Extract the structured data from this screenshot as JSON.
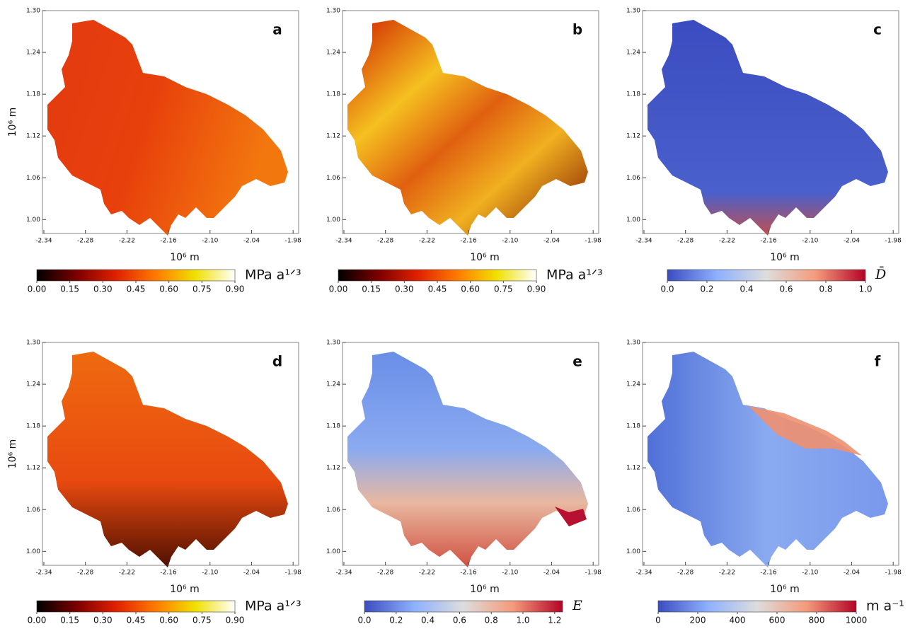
{
  "panels": [
    {
      "label": "a",
      "xlabel": "10⁶ m",
      "ylabel": "10⁶ m",
      "xlim": [
        -2.342,
        -1.972
      ],
      "xticks": [
        -2.34,
        -2.28,
        -2.22,
        -2.16,
        {
          "value": -2.1,
          "label": "-2.10"
        },
        -2.04,
        -1.98
      ],
      "ylim": [
        0.98,
        1.3
      ],
      "yticks": [
        {
          "value": 1,
          "label": "1.00"
        },
        1.06,
        1.12,
        1.18,
        1.24,
        {
          "value": 1.3,
          "label": "1.30"
        }
      ],
      "colorbar": {
        "label": "MPa a¹ᐟ³",
        "lim": [
          0,
          0.9
        ],
        "colors": [
          "#000000",
          "#7a0000",
          "#e02000",
          "#ff7a00",
          "#f0e000",
          "#ffffff"
        ],
        "ticks": [
          {
            "value": 0,
            "label": "0.00"
          },
          0.15,
          {
            "value": 0.3,
            "label": "0.30"
          },
          0.45,
          {
            "value": 0.6,
            "label": "0.60"
          },
          0.75,
          {
            "value": 0.9,
            "label": "0.90"
          }
        ]
      }
    },
    {
      "label": "b",
      "xlabel": "10⁶ m",
      "xlim": [
        -2.342,
        -1.972
      ],
      "xticks": [
        -2.34,
        -2.28,
        -2.22,
        -2.16,
        {
          "value": -2.1,
          "label": "-2.10"
        },
        -2.04,
        -1.98
      ],
      "ylim": [
        0.98,
        1.3
      ],
      "yticks": [
        {
          "value": 1,
          "label": "1.00"
        },
        1.06,
        1.12,
        1.18,
        1.24,
        {
          "value": 1.3,
          "label": "1.30"
        }
      ],
      "colorbar": {
        "label": "MPa a¹ᐟ³",
        "lim": [
          0,
          0.9
        ],
        "colors": [
          "#000000",
          "#7a0000",
          "#e02000",
          "#ff7a00",
          "#f0e000",
          "#ffffff"
        ],
        "ticks": [
          {
            "value": 0,
            "label": "0.00"
          },
          0.15,
          {
            "value": 0.3,
            "label": "0.30"
          },
          0.45,
          {
            "value": 0.6,
            "label": "0.60"
          },
          0.75,
          {
            "value": 0.9,
            "label": "0.90"
          }
        ]
      }
    },
    {
      "label": "c",
      "xlabel": "10⁶ m",
      "xlim": [
        -2.342,
        -1.972
      ],
      "xticks": [
        -2.34,
        -2.28,
        -2.22,
        -2.16,
        {
          "value": -2.1,
          "label": "-2.10"
        },
        -2.04,
        -1.98
      ],
      "ylim": [
        0.98,
        1.3
      ],
      "yticks": [
        {
          "value": 1,
          "label": "1.00"
        },
        1.06,
        1.12,
        1.18,
        1.24,
        {
          "value": 1.3,
          "label": "1.30"
        }
      ],
      "colorbar": {
        "label": "D̄",
        "lim": [
          0,
          1
        ],
        "colors": [
          "#3b4cc0",
          "#8db0fe",
          "#dddddd",
          "#f49a7b",
          "#b40426"
        ],
        "ticks": [
          {
            "value": 0,
            "label": "0.0"
          },
          {
            "value": 0.2,
            "label": "0.2"
          },
          {
            "value": 0.4,
            "label": "0.4"
          },
          {
            "value": 0.6,
            "label": "0.6"
          },
          {
            "value": 0.8,
            "label": "0.8"
          },
          {
            "value": 1,
            "label": "1.0"
          }
        ]
      }
    },
    {
      "label": "d",
      "xlabel": "10⁶ m",
      "ylabel": "10⁶ m",
      "xlim": [
        -2.342,
        -1.972
      ],
      "xticks": [
        -2.34,
        -2.28,
        -2.22,
        -2.16,
        {
          "value": -2.1,
          "label": "-2.10"
        },
        -2.04,
        -1.98
      ],
      "ylim": [
        0.98,
        1.3
      ],
      "yticks": [
        {
          "value": 1,
          "label": "1.00"
        },
        1.06,
        1.12,
        1.18,
        1.24,
        {
          "value": 1.3,
          "label": "1.30"
        }
      ],
      "colorbar": {
        "label": "MPa a¹ᐟ³",
        "lim": [
          0,
          0.9
        ],
        "colors": [
          "#000000",
          "#7a0000",
          "#e02000",
          "#ff7a00",
          "#f0e000",
          "#ffffff"
        ],
        "ticks": [
          {
            "value": 0,
            "label": "0.00"
          },
          0.15,
          {
            "value": 0.3,
            "label": "0.30"
          },
          0.45,
          {
            "value": 0.6,
            "label": "0.60"
          },
          0.75,
          {
            "value": 0.9,
            "label": "0.90"
          }
        ]
      }
    },
    {
      "label": "e",
      "xlabel": "10⁶ m",
      "xlim": [
        -2.342,
        -1.972
      ],
      "xticks": [
        -2.34,
        -2.28,
        -2.22,
        -2.16,
        {
          "value": -2.1,
          "label": "-2.10"
        },
        -2.04,
        -1.98
      ],
      "ylim": [
        0.98,
        1.3
      ],
      "yticks": [
        {
          "value": 1,
          "label": "1.00"
        },
        1.06,
        1.12,
        1.18,
        1.24,
        {
          "value": 1.3,
          "label": "1.30"
        }
      ],
      "colorbar": {
        "label": "E",
        "lim": [
          0,
          1.25
        ],
        "colors": [
          "#3b4cc0",
          "#8db0fe",
          "#dddddd",
          "#f49a7b",
          "#b40426"
        ],
        "ticks": [
          {
            "value": 0,
            "label": "0.0"
          },
          {
            "value": 0.2,
            "label": "0.2"
          },
          {
            "value": 0.4,
            "label": "0.4"
          },
          {
            "value": 0.6,
            "label": "0.6"
          },
          {
            "value": 0.8,
            "label": "0.8"
          },
          {
            "value": 1,
            "label": "1.0"
          },
          {
            "value": 1.2,
            "label": "1.2"
          }
        ]
      }
    },
    {
      "label": "f",
      "xlabel": "10⁶ m",
      "xlim": [
        -2.342,
        -1.972
      ],
      "xticks": [
        -2.34,
        -2.28,
        -2.22,
        -2.16,
        {
          "value": -2.1,
          "label": "-2.10"
        },
        -2.04,
        -1.98
      ],
      "ylim": [
        0.98,
        1.3
      ],
      "yticks": [
        {
          "value": 1,
          "label": "1.00"
        },
        1.06,
        1.12,
        1.18,
        1.24,
        {
          "value": 1.3,
          "label": "1.30"
        }
      ],
      "colorbar": {
        "label": "m a⁻¹",
        "lim": [
          0,
          1000
        ],
        "colors": [
          "#3b4cc0",
          "#8db0fe",
          "#dddddd",
          "#f49a7b",
          "#b40426"
        ],
        "ticks": [
          0,
          200,
          400,
          600,
          800,
          1000
        ]
      }
    }
  ]
}
